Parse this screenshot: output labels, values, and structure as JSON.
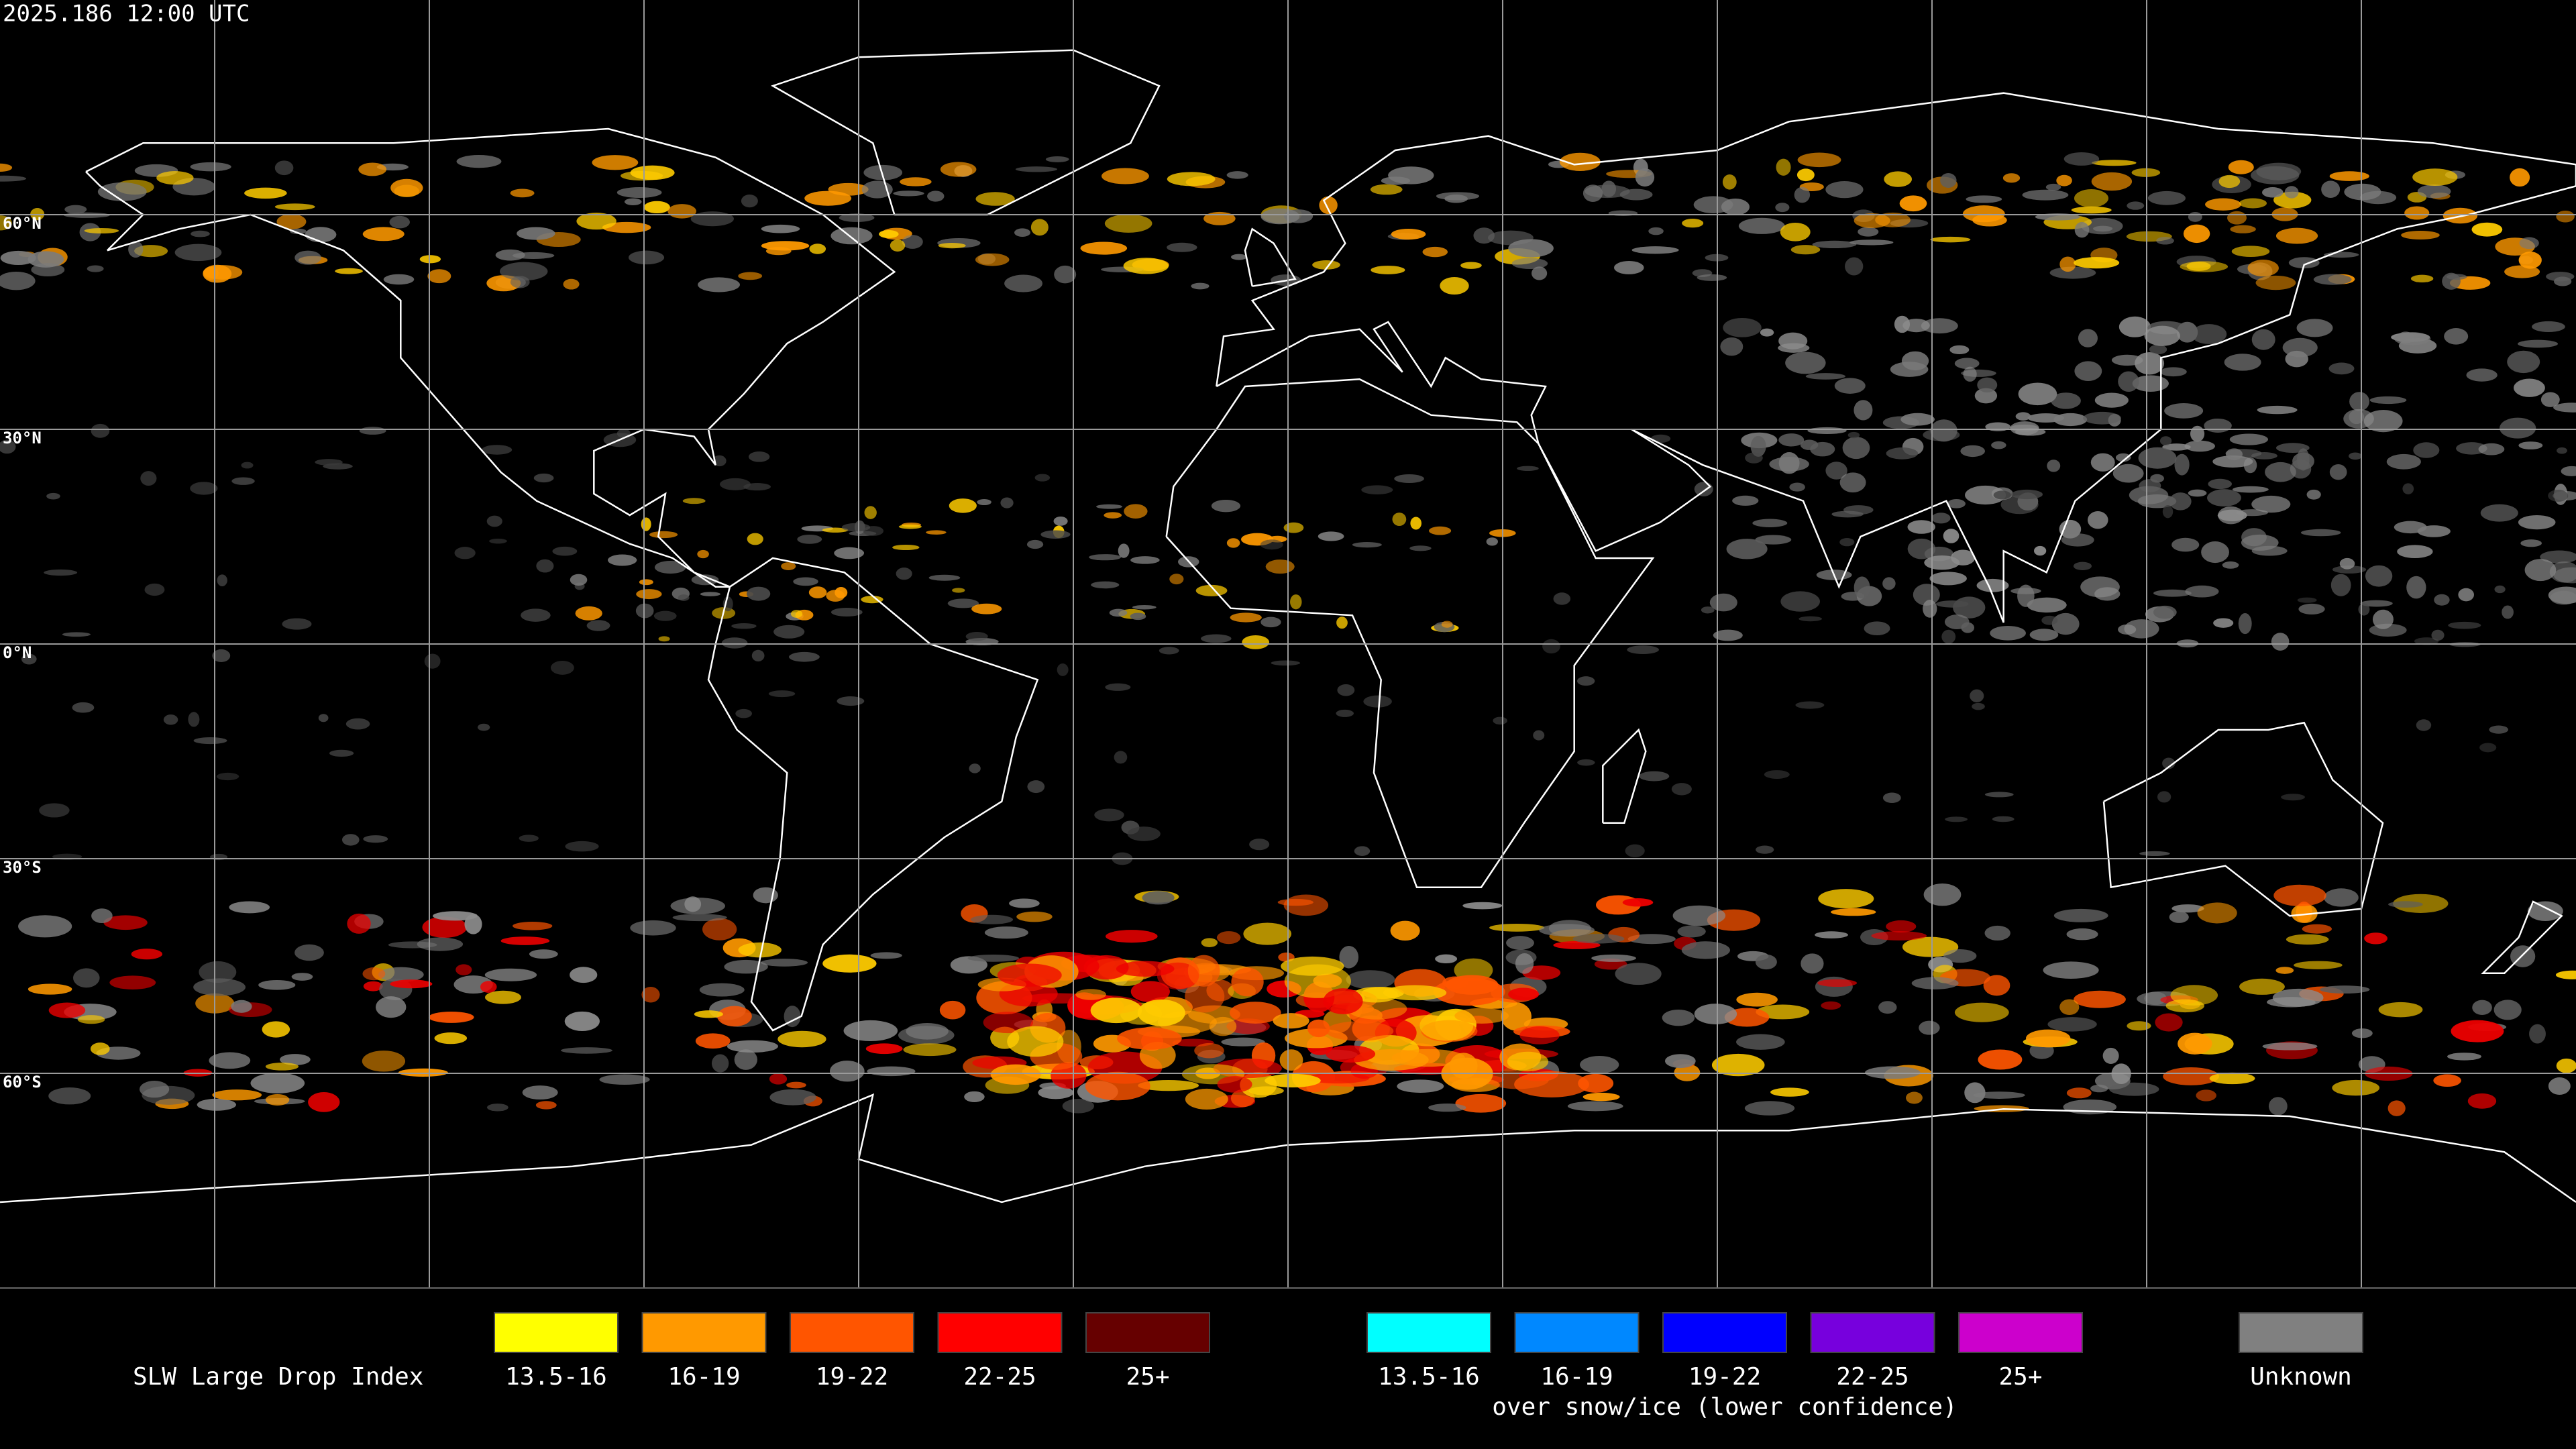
{
  "timestamp": "2025.186 12:00 UTC",
  "latitude_labels": [
    "60°N",
    "30°N",
    "0°N",
    "30°S",
    "60°S"
  ],
  "legend": {
    "title": "SLW Large Drop Index",
    "groups": [
      {
        "items": [
          {
            "label": "13.5-16",
            "color": "#ffff00"
          },
          {
            "label": "16-19",
            "color": "#ff9900"
          },
          {
            "label": "19-22",
            "color": "#ff5500"
          },
          {
            "label": "22-25",
            "color": "#ff0000"
          },
          {
            "label": "25+",
            "color": "#660000"
          }
        ]
      },
      {
        "caption": "over snow/ice (lower confidence)",
        "items": [
          {
            "label": "13.5-16",
            "color": "#00ffff"
          },
          {
            "label": "16-19",
            "color": "#0088ff"
          },
          {
            "label": "19-22",
            "color": "#0000ff"
          },
          {
            "label": "22-25",
            "color": "#7700dd"
          },
          {
            "label": "25+",
            "color": "#cc00cc"
          }
        ]
      },
      {
        "items": [
          {
            "label": "Unknown",
            "color": "#808080"
          }
        ]
      }
    ]
  }
}
